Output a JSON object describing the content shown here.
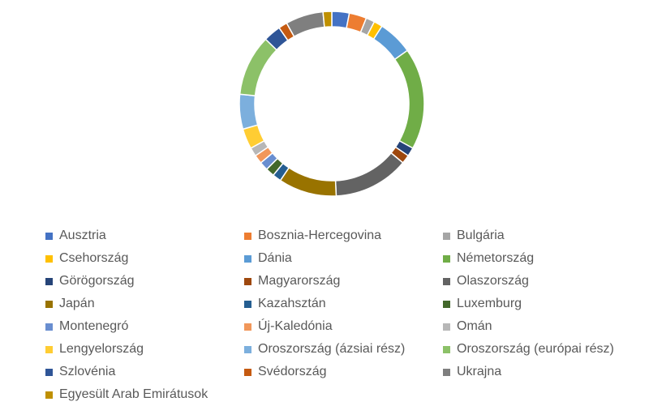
{
  "chart_data": {
    "type": "pie",
    "variant": "donut",
    "title": "",
    "legend_position": "bottom",
    "series": [
      {
        "name": "Ausztria",
        "value": 3.0,
        "color": "#4472C4"
      },
      {
        "name": "Bosznia-Hercegovina",
        "value": 3.0,
        "color": "#ED7D31"
      },
      {
        "name": "Bulgária",
        "value": 1.5,
        "color": "#A5A5A5"
      },
      {
        "name": "Csehország",
        "value": 1.5,
        "color": "#FFC000"
      },
      {
        "name": "Dánia",
        "value": 6.0,
        "color": "#5B9BD5"
      },
      {
        "name": "Németország",
        "value": 17.5,
        "color": "#70AD47"
      },
      {
        "name": "Görögország",
        "value": 1.5,
        "color": "#264478"
      },
      {
        "name": "Magyarország",
        "value": 1.5,
        "color": "#9E480E"
      },
      {
        "name": "Olaszország",
        "value": 13.0,
        "color": "#636363"
      },
      {
        "name": "Japán",
        "value": 10.0,
        "color": "#997300"
      },
      {
        "name": "Kazahsztán",
        "value": 1.5,
        "color": "#255E91"
      },
      {
        "name": "Luxemburg",
        "value": 1.5,
        "color": "#43682B"
      },
      {
        "name": "Montenegró",
        "value": 1.5,
        "color": "#698ED0"
      },
      {
        "name": "Új-Kaledónia",
        "value": 1.5,
        "color": "#F1975A"
      },
      {
        "name": "Omán",
        "value": 1.5,
        "color": "#B7B7B7"
      },
      {
        "name": "Lengyelország",
        "value": 3.5,
        "color": "#FFCD33"
      },
      {
        "name": "Oroszország (ázsiai rész)",
        "value": 6.0,
        "color": "#7CAFDD"
      },
      {
        "name": "Oroszország (európai rész)",
        "value": 10.5,
        "color": "#8CC168"
      },
      {
        "name": "Szlovénia",
        "value": 3.0,
        "color": "#2F5597"
      },
      {
        "name": "Svédország",
        "value": 1.5,
        "color": "#C55A11"
      },
      {
        "name": "Ukrajna",
        "value": 6.5,
        "color": "#7F7F7F"
      },
      {
        "name": "Egyesült Arab Emirátusok",
        "value": 1.5,
        "color": "#BF9000"
      }
    ]
  }
}
